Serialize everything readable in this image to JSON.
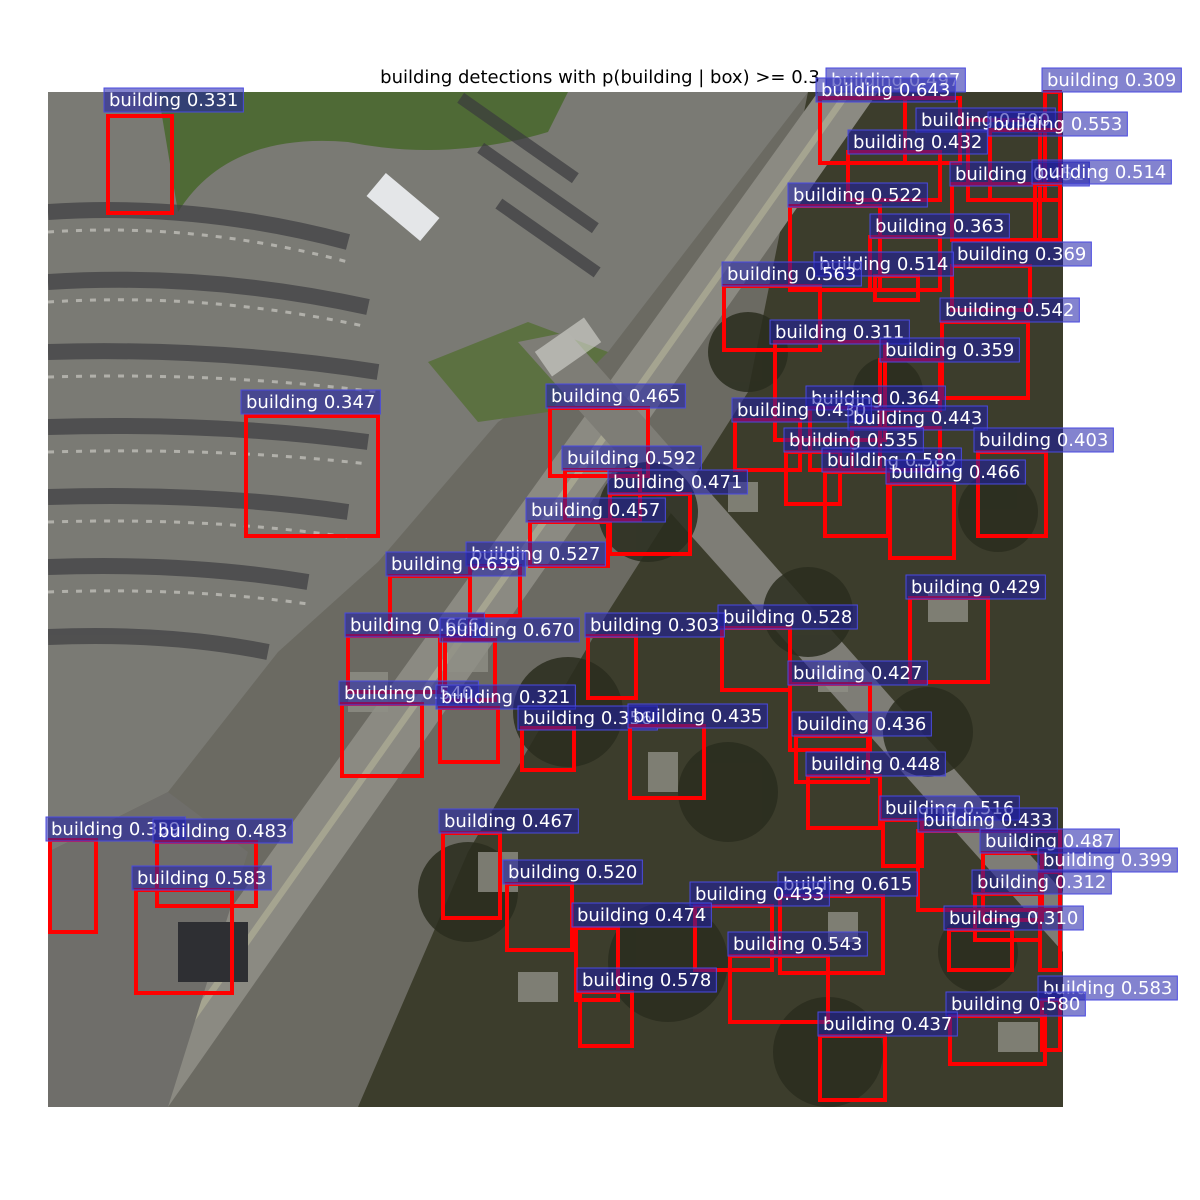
{
  "title": "building detections with p(building | box) >= 0.3",
  "colors": {
    "box_stroke": "#ff0000",
    "label_bg": "#1e1ea8",
    "label_border": "#4a4ae0",
    "label_text": "#ffffff"
  },
  "detections": [
    {
      "label": "building",
      "score": "0.331"
    },
    {
      "label": "building",
      "score": "0.497"
    },
    {
      "label": "building",
      "score": "0.643"
    },
    {
      "label": "building",
      "score": "0.309"
    },
    {
      "label": "building",
      "score": "0.590"
    },
    {
      "label": "building",
      "score": "0.553"
    },
    {
      "label": "building",
      "score": "0.432"
    },
    {
      "label": "building",
      "score": "0.451"
    },
    {
      "label": "building",
      "score": "0.514"
    },
    {
      "label": "building",
      "score": "0.522"
    },
    {
      "label": "building",
      "score": "0.363"
    },
    {
      "label": "building",
      "score": "0.369"
    },
    {
      "label": "building",
      "score": "0.514"
    },
    {
      "label": "building",
      "score": "0.563"
    },
    {
      "label": "building",
      "score": "0.542"
    },
    {
      "label": "building",
      "score": "0.311"
    },
    {
      "label": "building",
      "score": "0.359"
    },
    {
      "label": "building",
      "score": "0.347"
    },
    {
      "label": "building",
      "score": "0.465"
    },
    {
      "label": "building",
      "score": "0.364"
    },
    {
      "label": "building",
      "score": "0.430"
    },
    {
      "label": "building",
      "score": "0.443"
    },
    {
      "label": "building",
      "score": "0.535"
    },
    {
      "label": "building",
      "score": "0.403"
    },
    {
      "label": "building",
      "score": "0.592"
    },
    {
      "label": "building",
      "score": "0.589"
    },
    {
      "label": "building",
      "score": "0.466"
    },
    {
      "label": "building",
      "score": "0.471"
    },
    {
      "label": "building",
      "score": "0.457"
    },
    {
      "label": "building",
      "score": "0.527"
    },
    {
      "label": "building",
      "score": "0.639"
    },
    {
      "label": "building",
      "score": "0.429"
    },
    {
      "label": "building",
      "score": "0.528"
    },
    {
      "label": "building",
      "score": "0.666"
    },
    {
      "label": "building",
      "score": "0.670"
    },
    {
      "label": "building",
      "score": "0.303"
    },
    {
      "label": "building",
      "score": "0.427"
    },
    {
      "label": "building",
      "score": "0.540"
    },
    {
      "label": "building",
      "score": "0.321"
    },
    {
      "label": "building",
      "score": "0.356"
    },
    {
      "label": "building",
      "score": "0.435"
    },
    {
      "label": "building",
      "score": "0.436"
    },
    {
      "label": "building",
      "score": "0.448"
    },
    {
      "label": "building",
      "score": "0.516"
    },
    {
      "label": "building",
      "score": "0.433"
    },
    {
      "label": "building",
      "score": "0.339"
    },
    {
      "label": "building",
      "score": "0.483"
    },
    {
      "label": "building",
      "score": "0.467"
    },
    {
      "label": "building",
      "score": "0.487"
    },
    {
      "label": "building",
      "score": "0.399"
    },
    {
      "label": "building",
      "score": "0.583"
    },
    {
      "label": "building",
      "score": "0.520"
    },
    {
      "label": "building",
      "score": "0.615"
    },
    {
      "label": "building",
      "score": "0.312"
    },
    {
      "label": "building",
      "score": "0.433"
    },
    {
      "label": "building",
      "score": "0.474"
    },
    {
      "label": "building",
      "score": "0.310"
    },
    {
      "label": "building",
      "score": "0.543"
    },
    {
      "label": "building",
      "score": "0.578"
    },
    {
      "label": "building",
      "score": "0.583"
    },
    {
      "label": "building",
      "score": "0.580"
    },
    {
      "label": "building",
      "score": "0.437"
    }
  ]
}
